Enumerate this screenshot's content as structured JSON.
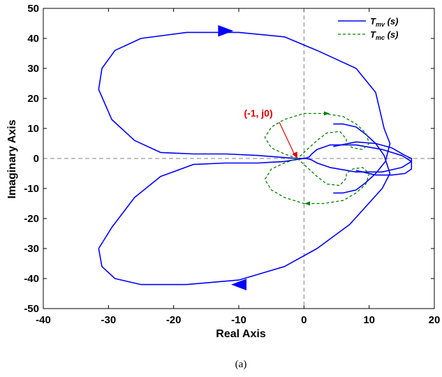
{
  "chart_data": {
    "type": "line",
    "title": "",
    "xlabel": "Real Axis",
    "ylabel": "Imaginary Axis",
    "xlim": [
      -40,
      20
    ],
    "ylim": [
      -50,
      50
    ],
    "xticks": [
      -40,
      -30,
      -20,
      -10,
      0,
      10,
      20
    ],
    "yticks": [
      -50,
      -40,
      -30,
      -20,
      -10,
      0,
      10,
      20,
      30,
      40,
      50
    ],
    "grid": false,
    "reference_lines": {
      "x": 0,
      "y": 0,
      "style": "dashed",
      "color": "#808080"
    },
    "legend": {
      "placement": "top-right"
    },
    "annotation": {
      "text": "(-1, j0)",
      "point": [
        -1,
        0
      ],
      "color": "#e00000"
    },
    "series": [
      {
        "name": "T",
        "name_sub": "mv",
        "name_suffix": " (s)",
        "color": "#0000ff",
        "style": "solid",
        "x": [
          4.5,
          8,
          11,
          13.5,
          15.5,
          16.5,
          16.5,
          15,
          12,
          8,
          4,
          2,
          1.2,
          0.8,
          0.4,
          0,
          -1,
          -3,
          -7,
          -12,
          -17,
          -22,
          -26,
          -29.5,
          -31.5,
          -31,
          -29,
          -25,
          -18,
          -10,
          -3,
          2,
          7,
          12,
          13.2,
          12.3,
          11,
          9.5,
          8,
          6,
          4.5
        ],
        "y": [
          4,
          5.5,
          5,
          3.5,
          1,
          0,
          -1,
          -3,
          -4.5,
          -4.5,
          -3,
          -1.5,
          -0.5,
          -0.2,
          -0.05,
          0,
          -0.3,
          -1,
          -1.5,
          -1.5,
          -2,
          -6,
          -13,
          -23,
          -30,
          -36,
          -40,
          -42,
          -42,
          -40.5,
          -36,
          -30,
          -22,
          -10,
          -5,
          1,
          5,
          8,
          10.5,
          11.5,
          11.5
        ],
        "x2": [
          4.5,
          6,
          8,
          9.5,
          11,
          12.5,
          13.2,
          12.3,
          11,
          8,
          2,
          -3,
          -10,
          -18,
          -25,
          -29,
          -31,
          -31.5,
          -29.5,
          -26,
          -22,
          -17,
          -12,
          -7,
          -3,
          -1,
          0,
          0.4,
          0.8,
          1.2,
          2,
          4,
          8,
          12,
          15,
          16.5,
          16.5,
          15.5,
          13.5,
          11,
          8,
          4.5
        ],
        "y2": [
          -11.5,
          -11.5,
          -10.5,
          -8,
          -5,
          -1,
          5,
          10,
          22,
          30,
          36,
          40.5,
          42,
          42,
          40,
          36,
          30,
          23,
          13,
          6,
          2,
          1.5,
          1.5,
          1,
          0.3,
          0,
          0.05,
          0.2,
          0.5,
          1.5,
          3,
          4.5,
          4.5,
          3,
          1,
          -1,
          -3.5,
          -5,
          -5.5,
          -5.5,
          -4
        ]
      },
      {
        "name": "T",
        "name_sub": "mc",
        "name_suffix": " (s)",
        "color": "#008000",
        "style": "dashed",
        "x": [
          -1,
          -3,
          -5,
          -6,
          -5,
          -3,
          0,
          3,
          6,
          8,
          9.5,
          10,
          9,
          7.5,
          6.5,
          6.5,
          5.5,
          3.5,
          2,
          0.5,
          -0.5,
          -1
        ],
        "y": [
          0,
          1.5,
          3.5,
          7,
          10.5,
          13,
          15,
          15,
          14,
          11.5,
          8.5,
          5,
          3,
          3.5,
          5,
          6.5,
          9,
          8.5,
          6,
          3,
          1,
          0
        ],
        "x2": [
          -1,
          -0.5,
          0.5,
          2,
          3.5,
          5.5,
          6.5,
          6.5,
          7.5,
          9,
          10,
          9.5,
          8,
          6,
          3,
          0,
          -3,
          -5,
          -6,
          -5,
          -3,
          -1
        ],
        "y2": [
          0,
          -1,
          -3,
          -6,
          -8.5,
          -9,
          -6.5,
          -5,
          -3.5,
          -3,
          -5,
          -8.5,
          -11.5,
          -14,
          -15,
          -15,
          -13,
          -10.5,
          -7,
          -3.5,
          -1.5,
          0
        ]
      }
    ],
    "arrows": [
      {
        "series": 0,
        "at": [
          -12,
          42.5
        ],
        "direction": "right"
      },
      {
        "series": 0,
        "at": [
          -10,
          -42
        ],
        "direction": "left"
      },
      {
        "series": 1,
        "at": [
          3.5,
          15
        ],
        "direction": "right"
      },
      {
        "series": 1,
        "at": [
          0.5,
          -15
        ],
        "direction": "left"
      }
    ]
  },
  "caption": "(a)"
}
